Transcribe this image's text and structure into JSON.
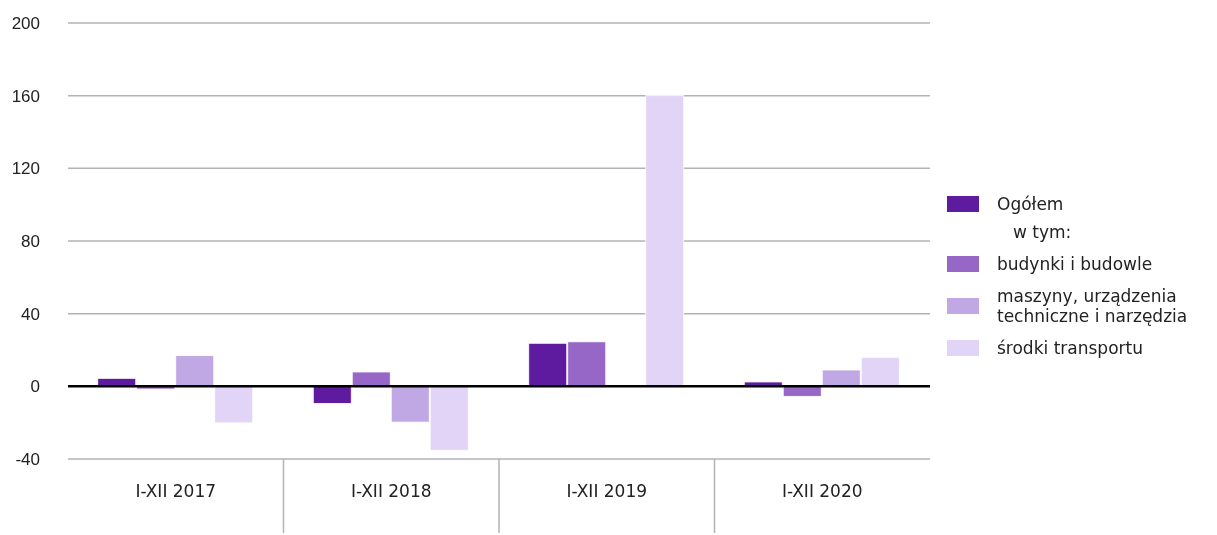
{
  "chart_data": {
    "type": "bar",
    "categories": [
      "I-XII 2017",
      "I-XII 2018",
      "I-XII 2019",
      "I-XII 2020"
    ],
    "series": [
      {
        "name": "Ogółem",
        "color": "#5e1ba0",
        "values": [
          4.4,
          -9.4,
          23.7,
          2.4
        ]
      },
      {
        "name": "budynki i budowle",
        "color": "#9767c7",
        "values": [
          -1.5,
          7.9,
          24.5,
          -5.5
        ]
      },
      {
        "name": "maszyny, urządzenia techniczne i narzędzia",
        "color": "#c0a8e4",
        "values": [
          16.9,
          -19.7,
          null,
          9
        ]
      },
      {
        "name": "środki transportu",
        "color": "#e2d4f6",
        "values": [
          -20.1,
          -35.2,
          160,
          16
        ]
      }
    ],
    "annotations": [
      "w tym:"
    ],
    "ylim": [
      -40,
      200
    ],
    "yticks": [
      -40,
      0,
      40,
      80,
      120,
      160,
      200
    ],
    "grid": "y",
    "legend": "right"
  }
}
